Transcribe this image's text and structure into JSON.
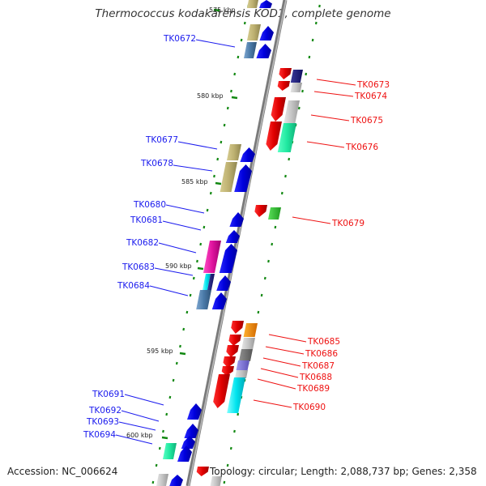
{
  "header": {
    "title": "Thermococcus kodakarensis KOD1, complete genome"
  },
  "footer": {
    "accession": "Accession: NC_006624",
    "topology": "Topology: circular; Length: 2,088,737 bp; Genes: 2,358"
  },
  "colors": {
    "forward_strand": "#1a1aee",
    "reverse_strand": "#ee1111",
    "tick_green": "#118811",
    "backbone": "#888888"
  },
  "kbp_marks": [
    "575 kbp",
    "580 kbp",
    "585 kbp",
    "590 kbp",
    "595 kbp",
    "600 kbp"
  ],
  "genes": [
    {
      "id": "TK0672",
      "strand": "forward"
    },
    {
      "id": "TK0673",
      "strand": "reverse"
    },
    {
      "id": "TK0674",
      "strand": "reverse"
    },
    {
      "id": "TK0675",
      "strand": "reverse"
    },
    {
      "id": "TK0676",
      "strand": "reverse"
    },
    {
      "id": "TK0677",
      "strand": "forward"
    },
    {
      "id": "TK0678",
      "strand": "forward"
    },
    {
      "id": "TK0679",
      "strand": "reverse"
    },
    {
      "id": "TK0680",
      "strand": "forward"
    },
    {
      "id": "TK0681",
      "strand": "forward"
    },
    {
      "id": "TK0682",
      "strand": "forward"
    },
    {
      "id": "TK0683",
      "strand": "forward"
    },
    {
      "id": "TK0684",
      "strand": "forward"
    },
    {
      "id": "TK0685",
      "strand": "reverse"
    },
    {
      "id": "TK0686",
      "strand": "reverse"
    },
    {
      "id": "TK0687",
      "strand": "reverse"
    },
    {
      "id": "TK0688",
      "strand": "reverse"
    },
    {
      "id": "TK0689",
      "strand": "reverse"
    },
    {
      "id": "TK0690",
      "strand": "reverse"
    },
    {
      "id": "TK0691",
      "strand": "forward"
    },
    {
      "id": "TK0692",
      "strand": "forward"
    },
    {
      "id": "TK0693",
      "strand": "forward"
    },
    {
      "id": "TK0694",
      "strand": "forward"
    }
  ]
}
